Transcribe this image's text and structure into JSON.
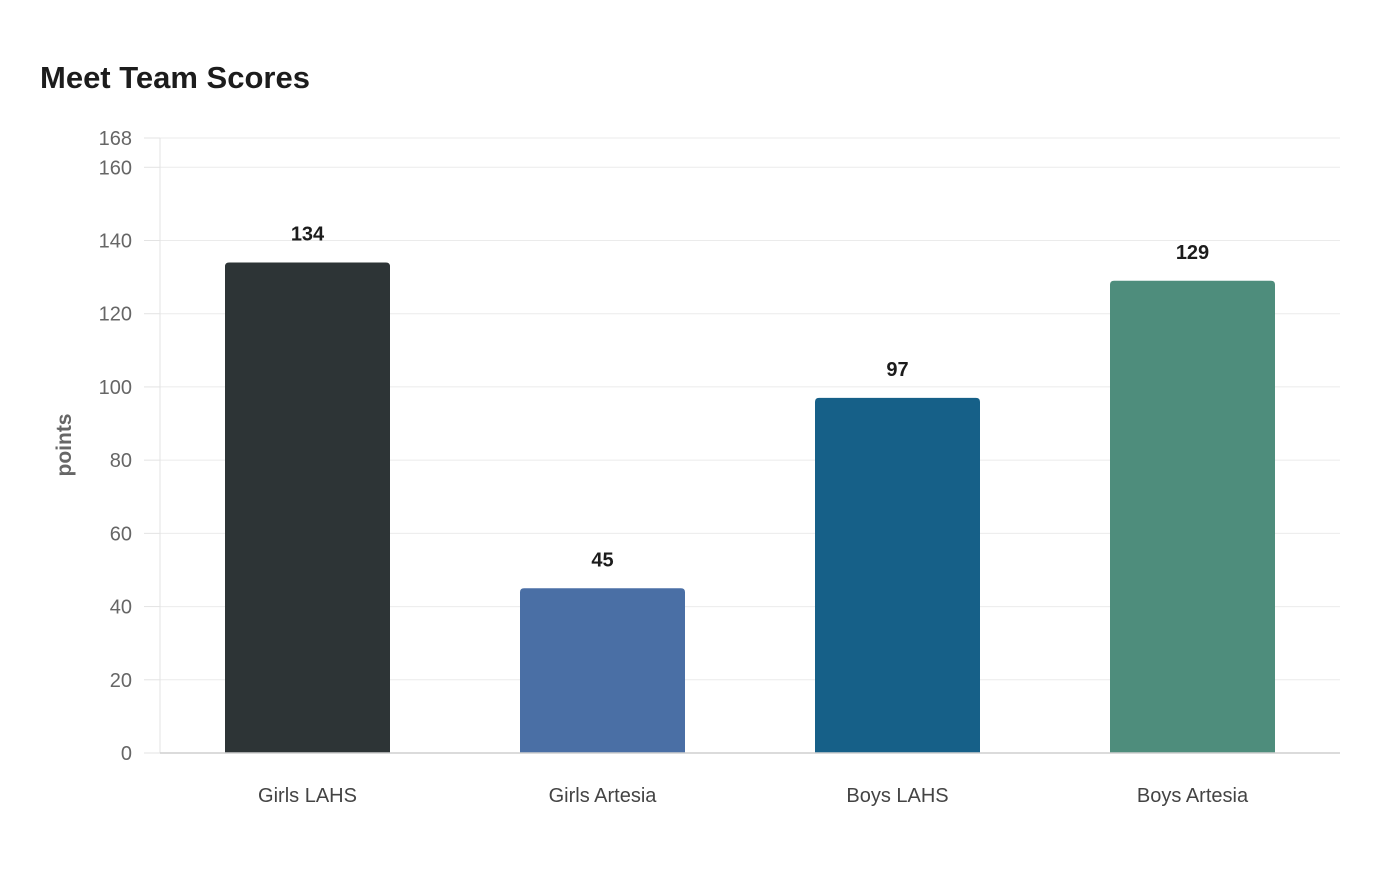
{
  "chart_data": {
    "type": "bar",
    "title": "Meet Team Scores",
    "xlabel": "",
    "ylabel": "points",
    "categories": [
      "Girls LAHS",
      "Girls Artesia",
      "Boys LAHS",
      "Boys Artesia"
    ],
    "values": [
      134,
      45,
      97,
      129
    ],
    "colors": [
      "#2d3436",
      "#4a6fa5",
      "#166088",
      "#4e8d7c"
    ],
    "ylim": [
      0,
      168
    ],
    "yticks": [
      0,
      20,
      40,
      60,
      80,
      100,
      120,
      140,
      160,
      168
    ],
    "grid": true,
    "legend": "none"
  }
}
